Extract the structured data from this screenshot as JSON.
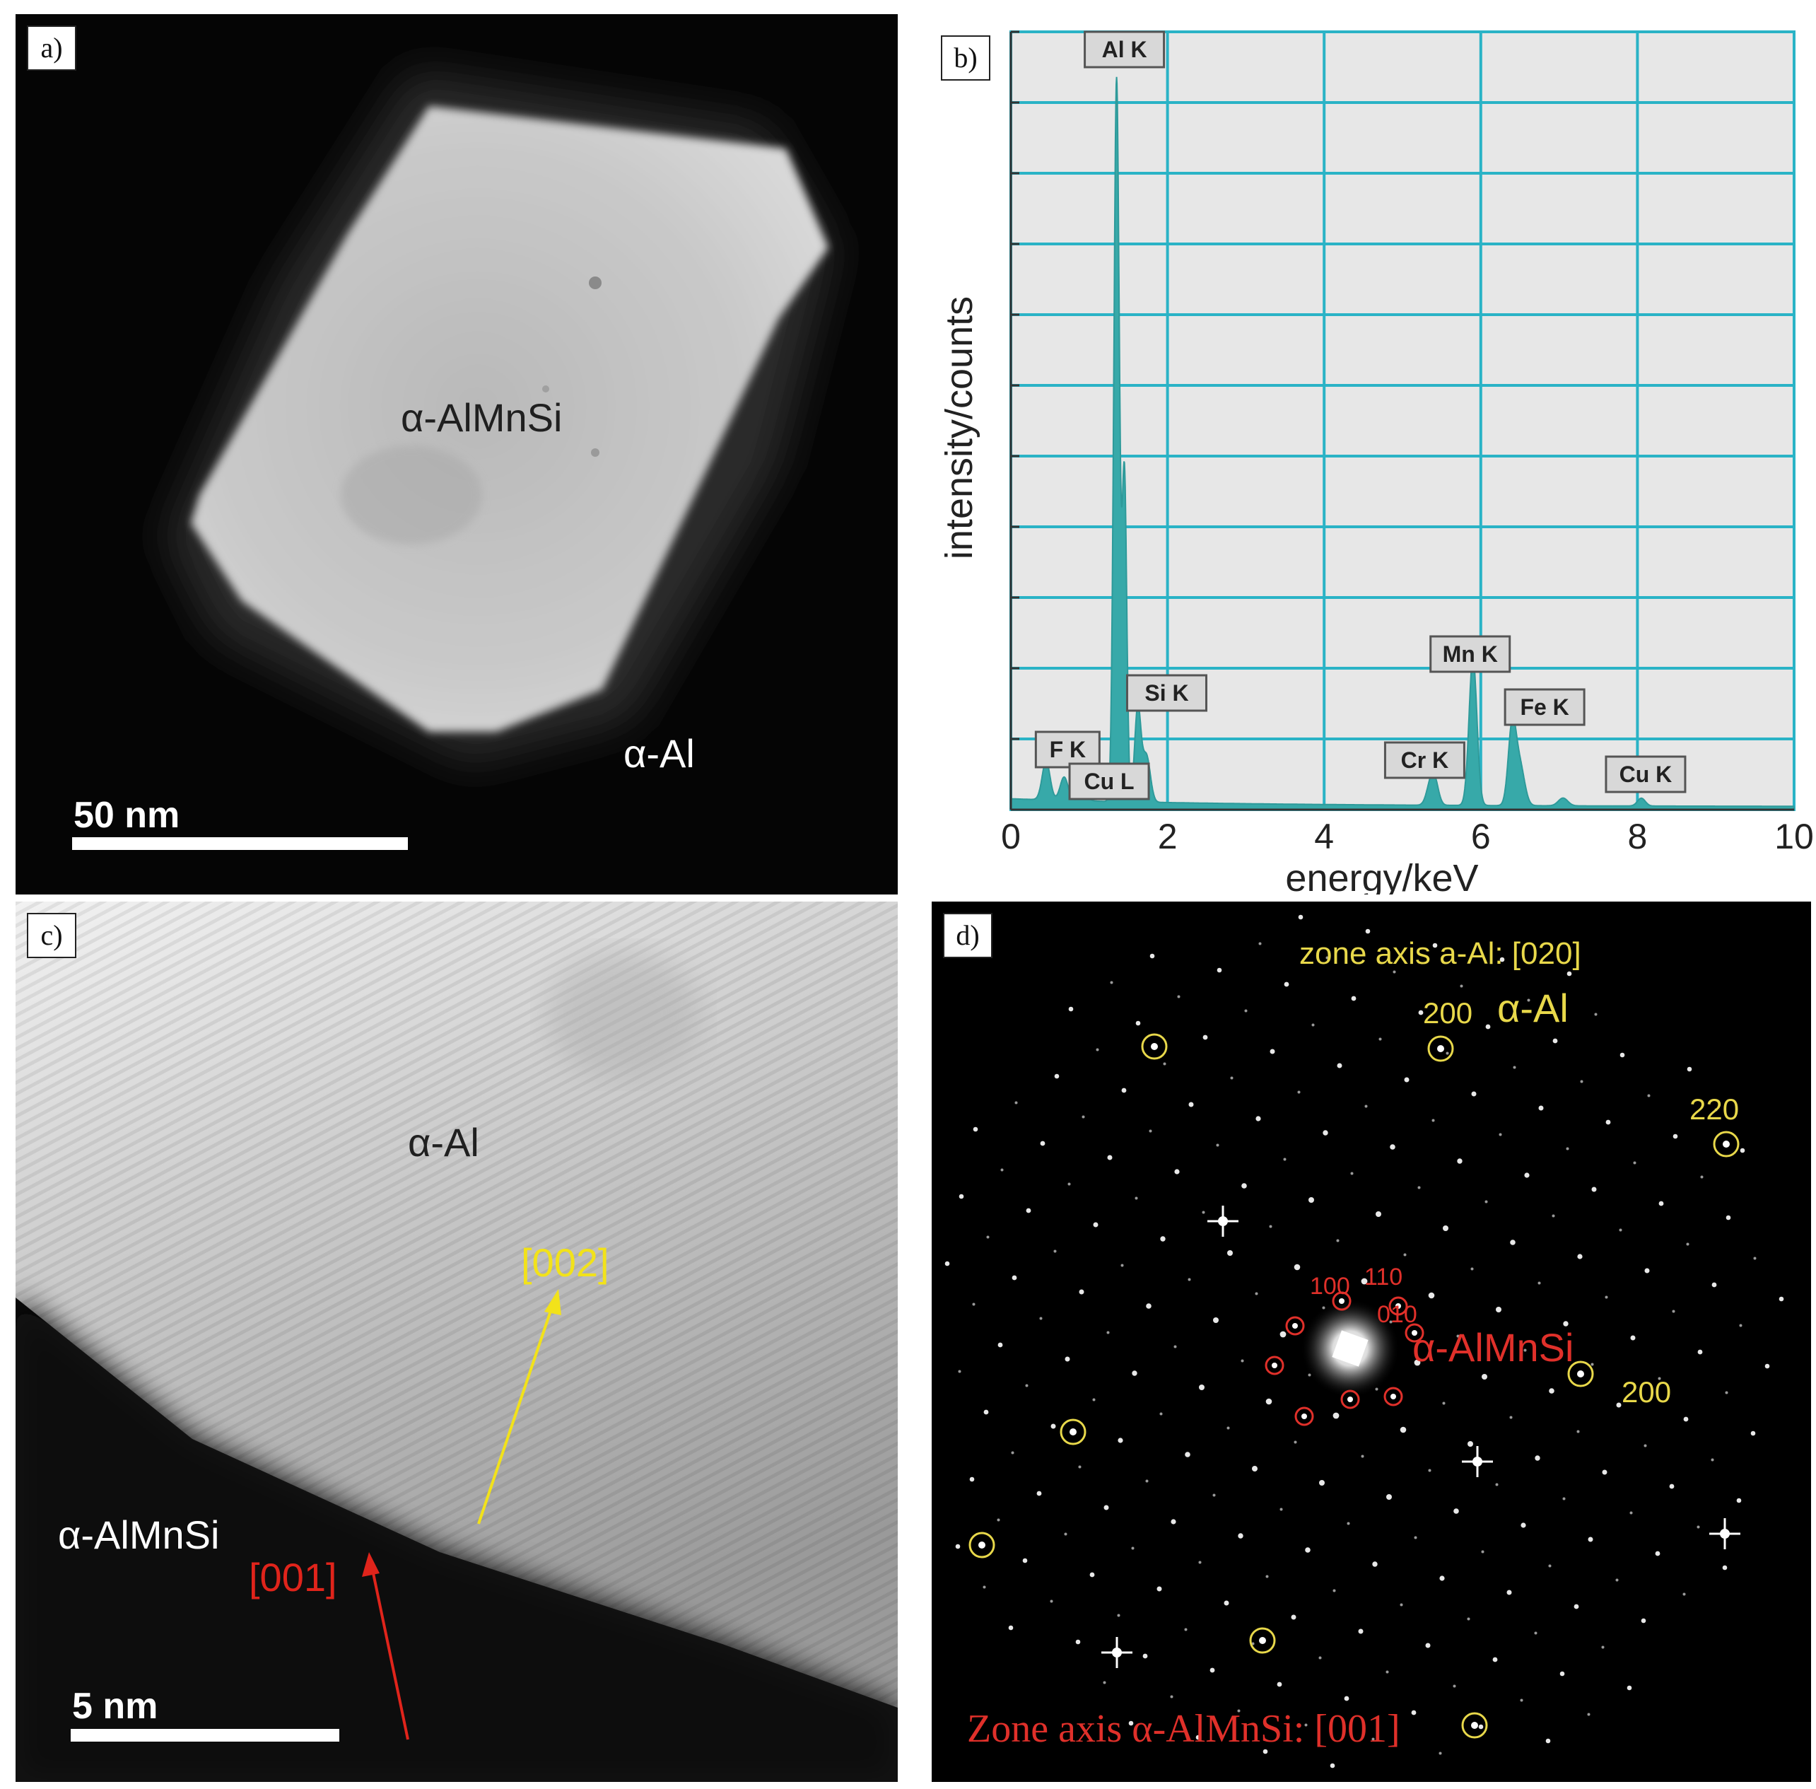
{
  "panel_a": {
    "tag": "a)",
    "precipitate_label": "α-AlMnSi",
    "matrix_label": "α-Al",
    "scalebar_label": "50 nm"
  },
  "panel_b": {
    "tag": "b)",
    "chart_data": {
      "type": "line",
      "title": "",
      "xlabel": "energy/keV",
      "ylabel": "intensity/counts",
      "xlim": [
        0,
        10
      ],
      "x_ticks": [
        "0",
        "2",
        "4",
        "6",
        "8",
        "10"
      ],
      "grid": true,
      "grid_color": "#2ab3c6",
      "spectrum_color": "#37a9a9",
      "peaks": [
        {
          "label": "F K",
          "x": 0.68,
          "y": 0.03
        },
        {
          "label": "Cu L",
          "x": 0.93,
          "y": 0.01
        },
        {
          "label": "Al K",
          "x": 1.35,
          "y": 0.93
        },
        {
          "label": "Si K",
          "x": 1.62,
          "y": 0.12
        },
        {
          "label": "Cr K",
          "x": 5.41,
          "y": 0.03
        },
        {
          "label": "Mn K",
          "x": 5.9,
          "y": 0.19
        },
        {
          "label": "Fe K",
          "x": 6.4,
          "y": 0.1
        },
        {
          "label": "Cu K",
          "x": 8.05,
          "y": 0.01
        }
      ]
    }
  },
  "panel_c": {
    "tag": "c)",
    "matrix_label": "α-Al",
    "precipitate_label": "α-AlMnSi",
    "direction_matrix": "[002]",
    "direction_precipitate": "[001]",
    "scalebar_label": "5 nm",
    "colors": {
      "matrix_arrow": "#f2e21a",
      "precipitate_arrow": "#e0241b"
    }
  },
  "panel_d": {
    "tag": "d)",
    "zone_axis_matrix": "zone axis a-Al: [020]",
    "zone_axis_precipitate": "Zone axis α-AlMnSi: [001]",
    "matrix_phase": "α-Al",
    "precipitate_phase": "α-AlMnSi",
    "matrix_spot_labels": [
      "200",
      "220",
      "200"
    ],
    "precipitate_spot_labels": [
      "100",
      "110",
      "010"
    ],
    "colors": {
      "matrix": "#e8d84a",
      "precipitate": "#e0302a"
    }
  }
}
